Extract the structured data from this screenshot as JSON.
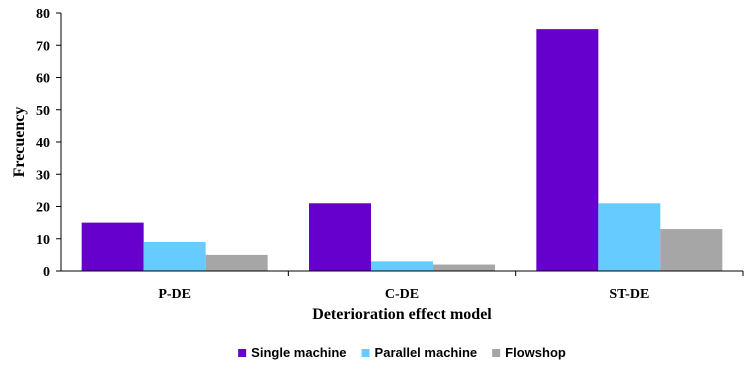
{
  "chart_data": {
    "type": "bar",
    "categories": [
      "P-DE",
      "C-DE",
      "ST-DE"
    ],
    "series": [
      {
        "name": "Single machine",
        "values": [
          15,
          21,
          75
        ],
        "color": "#6600CC"
      },
      {
        "name": "Parallel machine",
        "values": [
          9,
          3,
          21
        ],
        "color": "#66CCFF"
      },
      {
        "name": "Flowshop",
        "values": [
          5,
          2,
          13
        ],
        "color": "#A6A6A6"
      }
    ],
    "yticks": [
      "0",
      "10",
      "20",
      "30",
      "40",
      "50",
      "60",
      "70",
      "80"
    ],
    "title": "",
    "xlabel": "Deterioration effect model",
    "ylabel": "Frecuency",
    "ylim": [
      0,
      80
    ],
    "grid": false,
    "legend": "bottom"
  }
}
